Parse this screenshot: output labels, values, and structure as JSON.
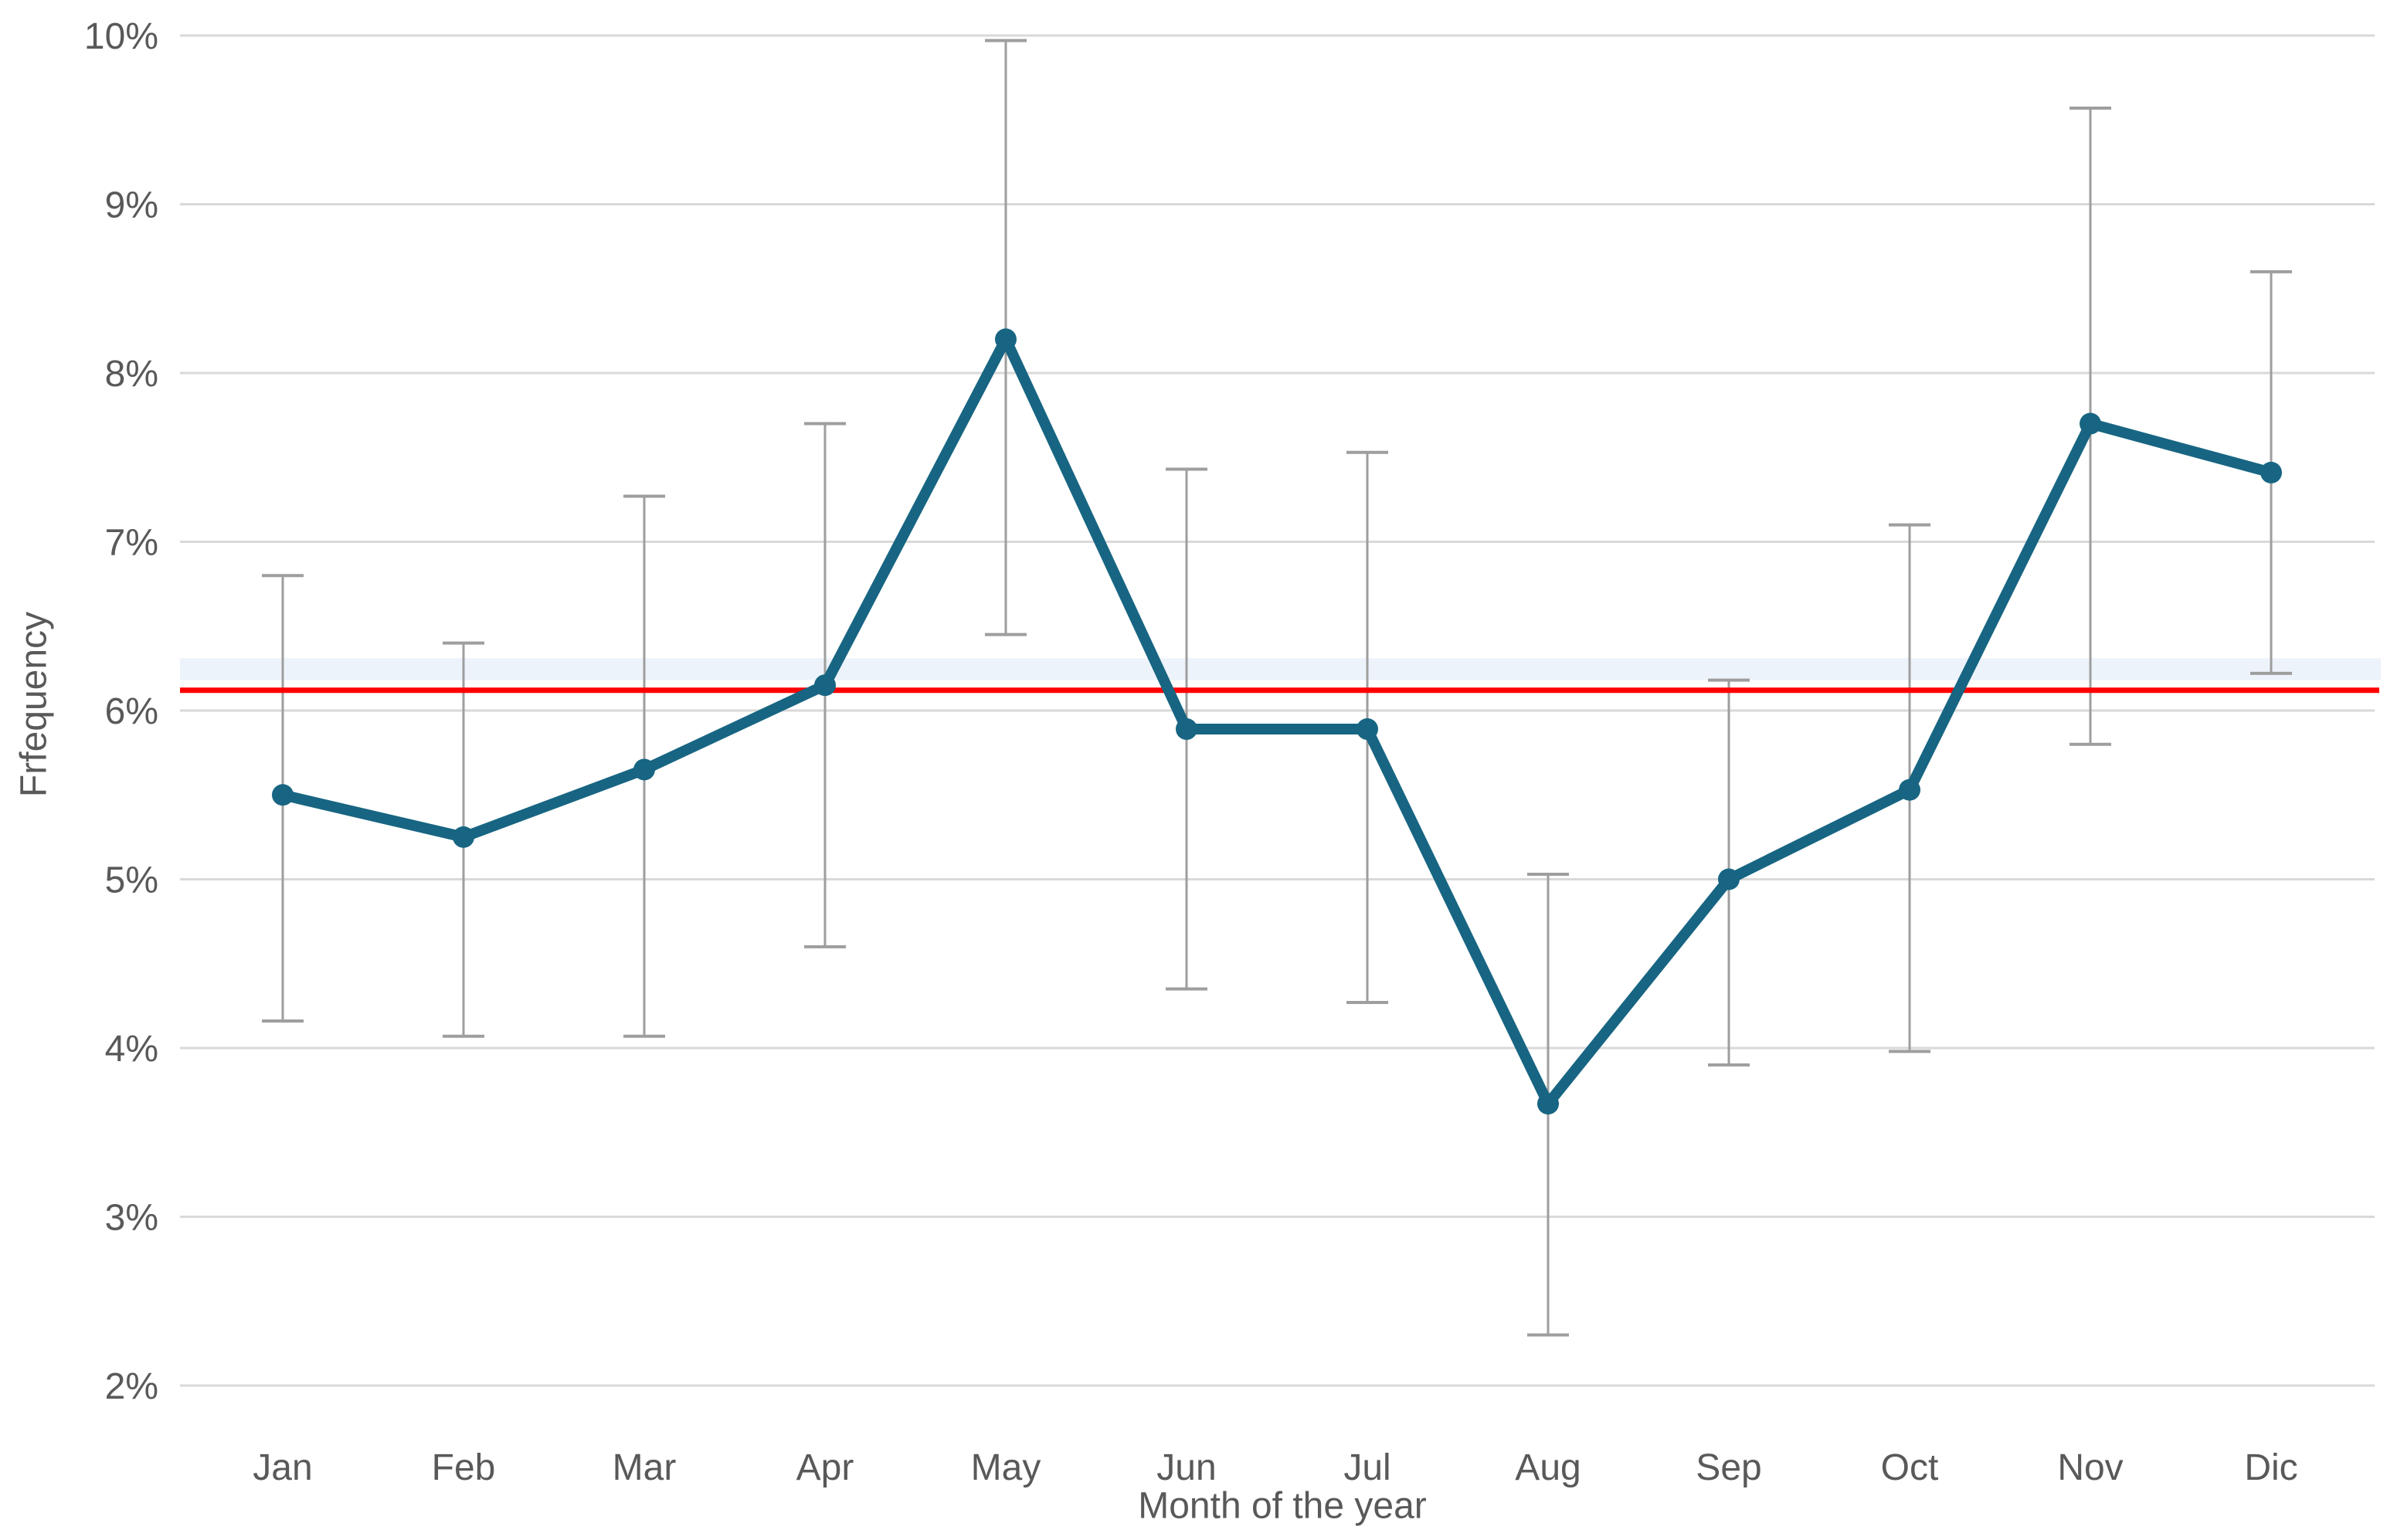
{
  "chart_data": {
    "type": "line",
    "xlabel": "Month of the year",
    "ylabel": "Frfequency",
    "categories": [
      "Jan",
      "Feb",
      "Mar",
      "Apr",
      "May",
      "Jun",
      "Jul",
      "Aug",
      "Sep",
      "Oct",
      "Nov",
      "Dic"
    ],
    "series": [
      {
        "name": "Frequency",
        "color": "#176582",
        "values": [
          5.5,
          5.25,
          5.65,
          6.15,
          8.2,
          5.89,
          5.89,
          3.67,
          5.0,
          5.53,
          7.7,
          7.41
        ],
        "error_low": [
          4.16,
          4.07,
          4.07,
          4.6,
          6.45,
          4.35,
          4.27,
          2.3,
          3.9,
          3.98,
          5.8,
          6.22
        ],
        "error_high": [
          6.8,
          6.4,
          7.27,
          7.7,
          9.97,
          7.43,
          7.53,
          5.03,
          6.18,
          7.1,
          9.57,
          8.6
        ]
      }
    ],
    "reference_line": {
      "value": 6.12,
      "color": "#FF0000"
    },
    "highlight_band": {
      "from": 6.18,
      "to": 6.31,
      "color": "#EDF3FA"
    },
    "ylim": [
      2,
      10
    ],
    "yticks": [
      {
        "value": 2,
        "label": "2%"
      },
      {
        "value": 3,
        "label": "3%"
      },
      {
        "value": 4,
        "label": "4%"
      },
      {
        "value": 5,
        "label": "5%"
      },
      {
        "value": 6,
        "label": "6%"
      },
      {
        "value": 7,
        "label": "7%"
      },
      {
        "value": 8,
        "label": "8%"
      },
      {
        "value": 9,
        "label": "9%"
      },
      {
        "value": 10,
        "label": "10%"
      }
    ],
    "grid": "horizontal",
    "legend": "none",
    "colors": {
      "gridline": "#D9D9D9",
      "error_bar": "#9E9E9E",
      "text": "#595959",
      "background": "#FFFFFF"
    }
  }
}
